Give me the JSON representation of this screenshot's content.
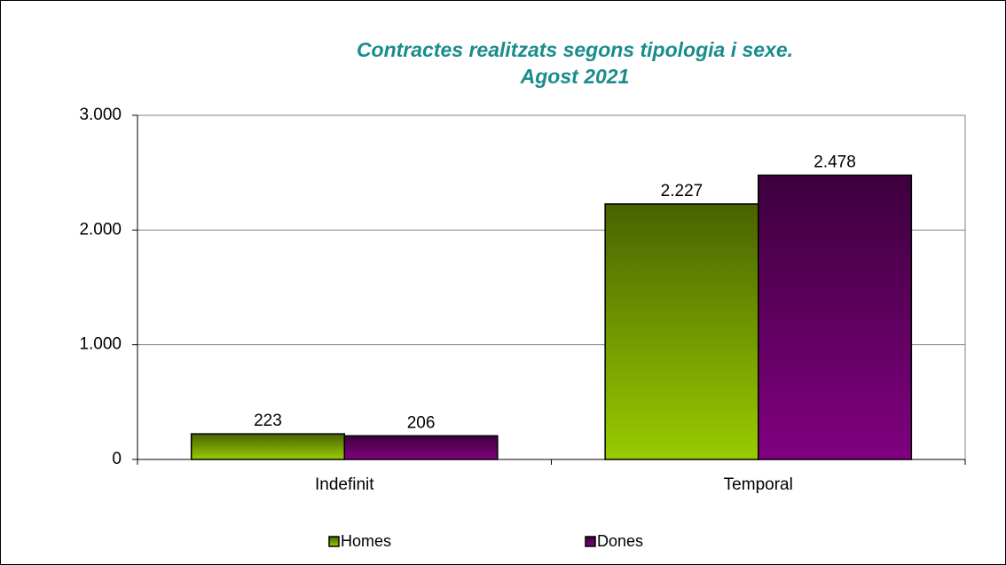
{
  "chart_data": {
    "type": "bar",
    "title": [
      "Contractes realitzats segons tipologia i sexe.",
      "Agost 2021"
    ],
    "categories": [
      "Indefinit",
      "Temporal"
    ],
    "series": [
      {
        "name": "Homes",
        "color": "#99cc00",
        "values": [
          223,
          2227
        ],
        "value_labels": [
          "223",
          "2.227"
        ]
      },
      {
        "name": "Dones",
        "color": "#800080",
        "values": [
          206,
          2478
        ],
        "value_labels": [
          "206",
          "2.478"
        ]
      }
    ],
    "ylim": [
      0,
      3000
    ],
    "yticks": [
      0,
      {
        "value": 1000,
        "label": "1.000"
      },
      {
        "value": 2000,
        "label": "2.000"
      },
      {
        "value": 3000,
        "label": "3.000"
      }
    ],
    "grid": true,
    "legend": "bottom"
  }
}
